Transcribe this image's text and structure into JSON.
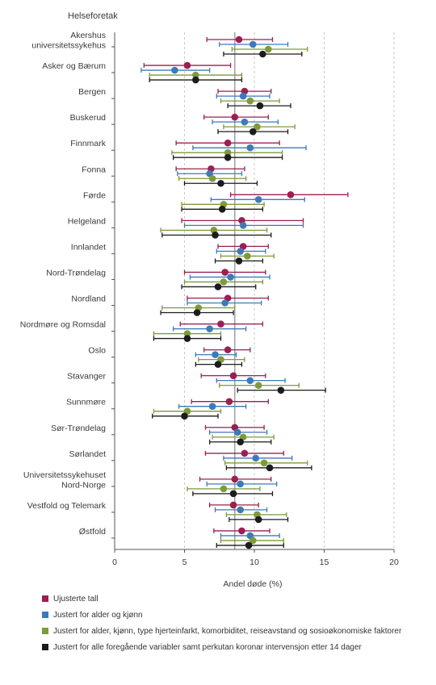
{
  "chart_data": {
    "type": "errorbar",
    "title": "",
    "y_axis_title": "Helseforetak",
    "xlabel": "Andel døde (%)",
    "xlim": [
      0,
      20
    ],
    "xticks": [
      0,
      5,
      10,
      15,
      20
    ],
    "grid": "vertical dashed",
    "reference_line_x": 8.6,
    "legend_position": "bottom",
    "categories": [
      [
        "Akershus",
        "universitetssykehus"
      ],
      [
        "Asker og Bærum"
      ],
      [
        "Bergen"
      ],
      [
        "Buskerud"
      ],
      [
        "Finnmark"
      ],
      [
        "Fonna"
      ],
      [
        "Førde"
      ],
      [
        "Helgeland"
      ],
      [
        "Innlandet"
      ],
      [
        "Nord-Trøndelag"
      ],
      [
        "Nordland"
      ],
      [
        "Nordmøre og Romsdal"
      ],
      [
        "Oslo"
      ],
      [
        "Stavanger"
      ],
      [
        "Sunnmøre"
      ],
      [
        "Sør-Trøndelag"
      ],
      [
        "Sørlandet"
      ],
      [
        "Universitetssykehuset",
        "Nord-Norge"
      ],
      [
        "Vestfold og Telemark"
      ],
      [
        "Østfold"
      ]
    ],
    "series": [
      {
        "name": "Ujusterte tall",
        "color": "#9b1f53",
        "values": [
          8.9,
          5.2,
          9.3,
          8.6,
          8.1,
          6.9,
          12.6,
          9.1,
          9.2,
          7.9,
          8.1,
          7.6,
          8.1,
          8.5,
          8.2,
          8.6,
          9.3,
          8.6,
          8.5,
          9.1
        ],
        "lower": [
          6.6,
          2.1,
          7.4,
          6.4,
          4.4,
          4.4,
          8.3,
          4.8,
          7.4,
          5.0,
          5.2,
          4.7,
          6.4,
          6.2,
          5.5,
          6.5,
          6.5,
          6.1,
          6.8,
          7.1
        ],
        "upper": [
          11.3,
          8.3,
          11.2,
          11.0,
          11.8,
          9.3,
          16.7,
          13.5,
          11.0,
          10.8,
          11.0,
          10.6,
          9.7,
          10.8,
          11.0,
          10.7,
          12.1,
          11.2,
          10.3,
          11.1
        ]
      },
      {
        "name": "Justert for alder og kjønn",
        "color": "#3d7ab8",
        "values": [
          9.9,
          4.3,
          9.2,
          9.3,
          9.7,
          6.8,
          10.3,
          9.2,
          9.0,
          8.3,
          7.9,
          6.8,
          7.2,
          9.7,
          7.0,
          8.8,
          10.1,
          9.0,
          9.0,
          9.7
        ],
        "lower": [
          7.5,
          1.9,
          7.3,
          7.0,
          5.6,
          4.5,
          6.9,
          5.0,
          7.3,
          5.4,
          5.2,
          4.2,
          5.8,
          7.3,
          4.6,
          6.8,
          7.8,
          6.6,
          7.2,
          7.6
        ],
        "upper": [
          12.4,
          6.8,
          11.1,
          11.7,
          13.7,
          9.1,
          13.6,
          13.5,
          10.8,
          11.1,
          10.5,
          9.4,
          8.7,
          12.2,
          9.4,
          10.9,
          12.7,
          11.6,
          10.9,
          11.8
        ]
      },
      {
        "name": "Justert for alder, kjønn, type hjerteinfarkt, komorbiditet, reiseavstand og sosioøkonomiske faktorer",
        "color": "#7d9a3c",
        "values": [
          11.0,
          5.8,
          9.7,
          10.2,
          8.1,
          7.0,
          7.8,
          7.1,
          9.5,
          7.8,
          6.0,
          5.2,
          7.6,
          10.3,
          5.2,
          9.2,
          10.7,
          7.8,
          10.2,
          9.9
        ],
        "lower": [
          8.4,
          2.5,
          7.6,
          7.8,
          4.1,
          4.6,
          4.8,
          3.3,
          7.6,
          5.0,
          3.4,
          2.8,
          6.0,
          7.5,
          2.8,
          7.0,
          7.9,
          5.2,
          8.0,
          7.6
        ],
        "upper": [
          13.8,
          9.1,
          11.8,
          12.9,
          12.0,
          9.4,
          10.7,
          10.9,
          11.4,
          10.6,
          8.6,
          7.6,
          9.3,
          13.2,
          7.6,
          11.4,
          13.8,
          10.4,
          12.3,
          12.1
        ]
      },
      {
        "name": "Justert for alle foregående variabler samt perkutan koronar intervensjon etter 14 dager",
        "color": "#1c1c1c",
        "values": [
          10.6,
          5.8,
          10.4,
          9.9,
          8.1,
          7.6,
          7.7,
          7.2,
          8.9,
          7.4,
          5.9,
          5.2,
          7.4,
          11.9,
          5.0,
          9.0,
          11.1,
          8.5,
          10.3,
          9.6
        ],
        "lower": [
          7.8,
          2.5,
          8.1,
          7.4,
          4.2,
          5.0,
          4.8,
          3.4,
          7.2,
          4.8,
          3.3,
          2.8,
          5.8,
          8.8,
          2.7,
          6.8,
          8.0,
          5.6,
          8.2,
          7.3
        ],
        "upper": [
          13.4,
          9.1,
          12.6,
          12.4,
          12.0,
          10.2,
          10.6,
          11.2,
          10.6,
          10.1,
          8.5,
          7.6,
          9.1,
          15.1,
          7.4,
          11.2,
          14.1,
          11.3,
          12.4,
          12.1
        ]
      }
    ]
  }
}
